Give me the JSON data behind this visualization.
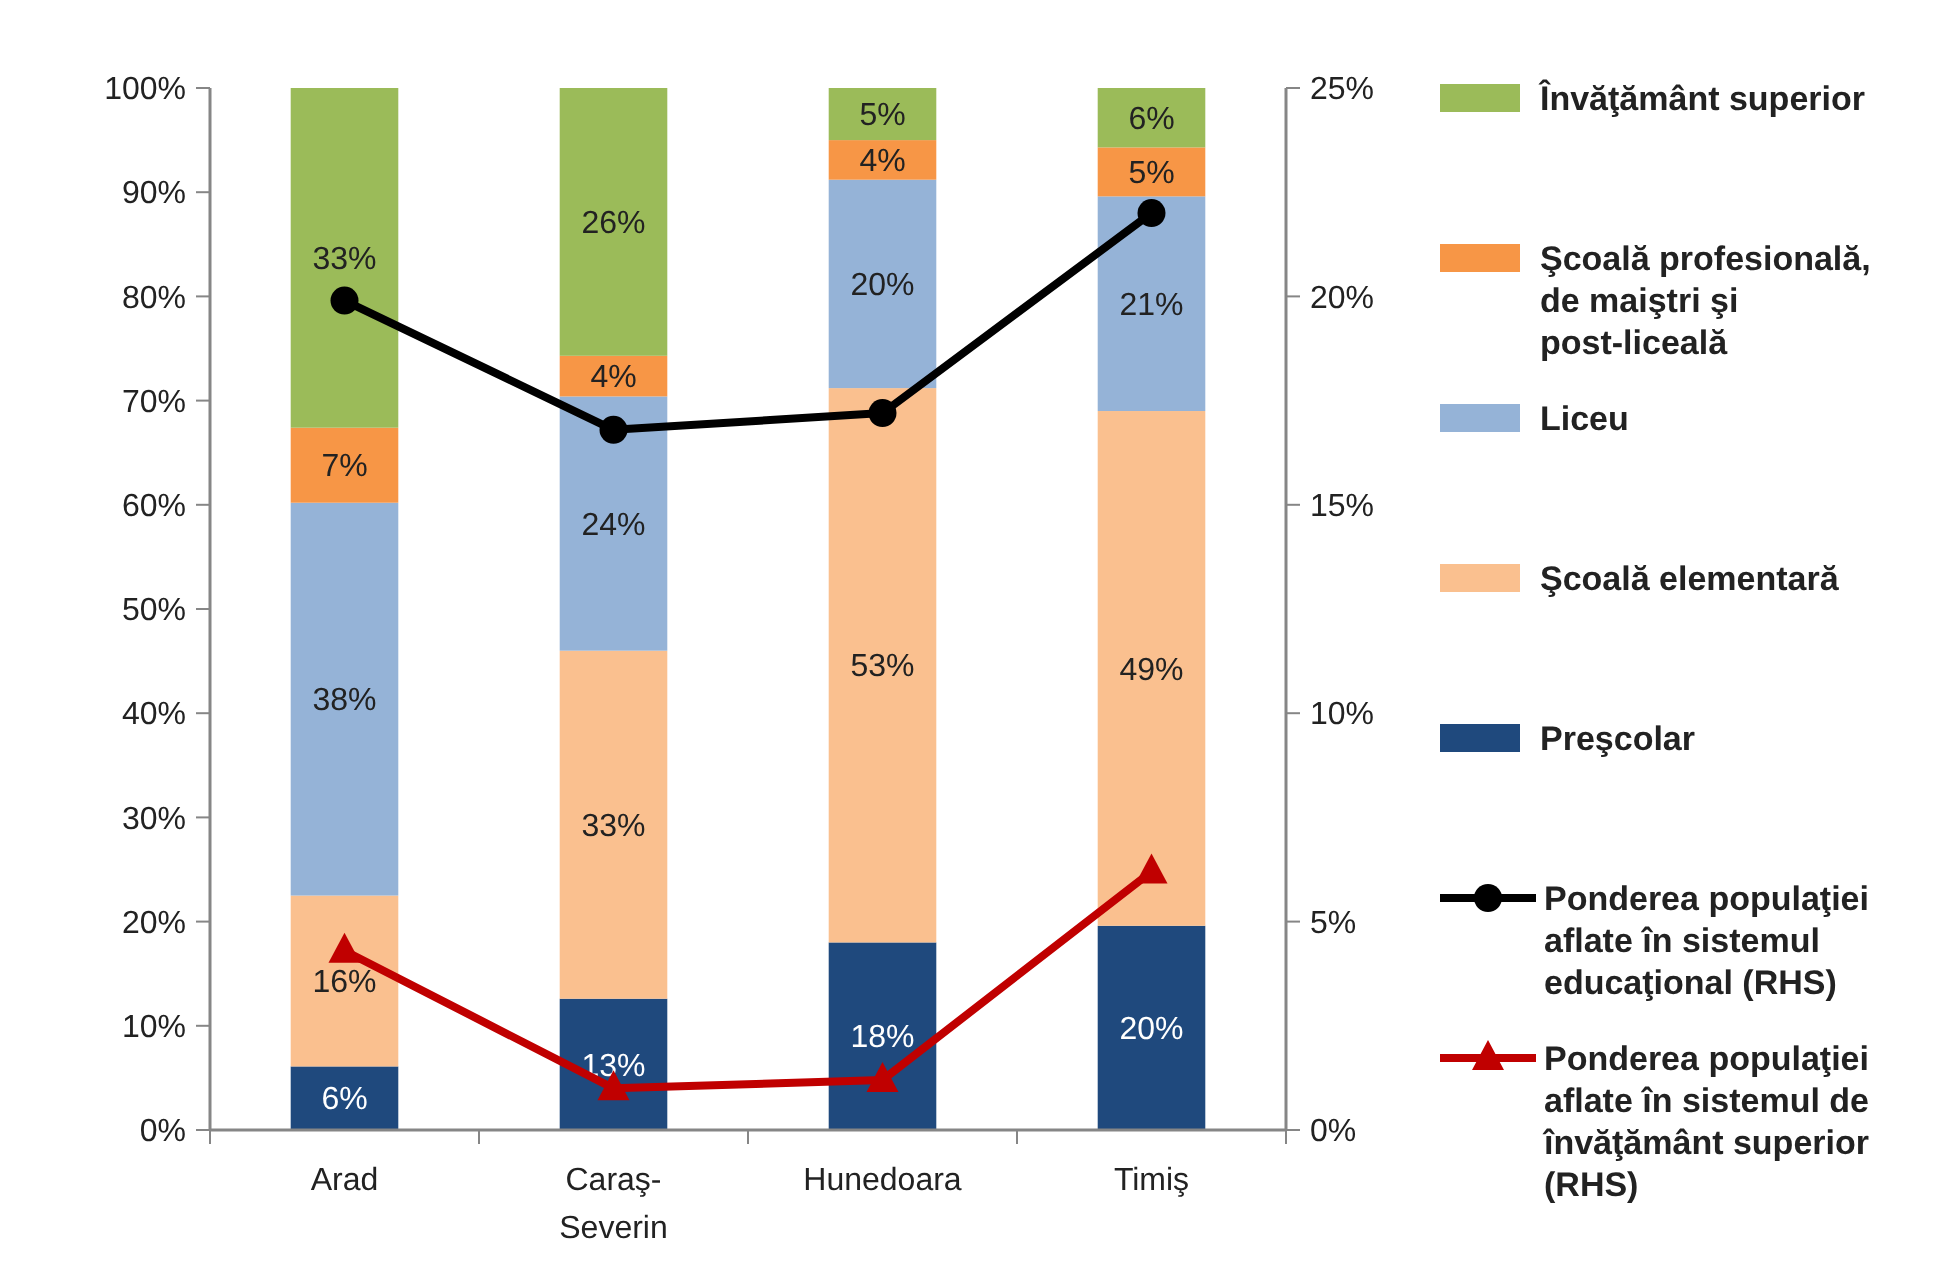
{
  "chart_data": {
    "type": "bar",
    "stacked": true,
    "categories": [
      "Arad",
      "Caraş-Severin",
      "Hunedoara",
      "Timiş"
    ],
    "ylim": [
      0,
      100
    ],
    "yticks": [
      {
        "value": 0,
        "label": "0%"
      },
      {
        "value": 10,
        "label": "10%"
      },
      {
        "value": 20,
        "label": "20%"
      },
      {
        "value": 30,
        "label": "30%"
      },
      {
        "value": 40,
        "label": "40%"
      },
      {
        "value": 50,
        "label": "50%"
      },
      {
        "value": 60,
        "label": "60%"
      },
      {
        "value": 70,
        "label": "70%"
      },
      {
        "value": 80,
        "label": "80%"
      },
      {
        "value": 90,
        "label": "90%"
      },
      {
        "value": 100,
        "label": "100%"
      }
    ],
    "y2lim": [
      0,
      25
    ],
    "y2ticks": [
      {
        "value": 0,
        "label": "0%"
      },
      {
        "value": 5,
        "label": "5%"
      },
      {
        "value": 10,
        "label": "10%"
      },
      {
        "value": 15,
        "label": "15%"
      },
      {
        "value": 20,
        "label": "20%"
      },
      {
        "value": 25,
        "label": "25%"
      }
    ],
    "legend": "right",
    "grid": false,
    "series": [
      {
        "name": "Preşcolar",
        "color": "#1f497d",
        "values": [
          6.1,
          12.6,
          18.0,
          19.6
        ],
        "value_labels": [
          "6%",
          "13%",
          "18%",
          "20%"
        ]
      },
      {
        "name": "Şcoală elementară",
        "color": "#fac08f",
        "values": [
          16.4,
          33.4,
          53.2,
          49.4
        ],
        "value_labels": [
          "16%",
          "33%",
          "53%",
          "49%"
        ]
      },
      {
        "name": "Liceu",
        "color": "#95b3d7",
        "values": [
          37.7,
          24.4,
          20.0,
          20.6
        ],
        "value_labels": [
          "38%",
          "24%",
          "20%",
          "21%"
        ]
      },
      {
        "name": "Şcoală profesională, de maiştri şi post-liceală",
        "color": "#f79646",
        "values": [
          7.2,
          3.9,
          3.8,
          4.7
        ],
        "value_labels": [
          "7%",
          "4%",
          "4%",
          "5%"
        ]
      },
      {
        "name": "Învăţământ superior",
        "color": "#9bbb59",
        "values": [
          32.6,
          25.7,
          5.0,
          5.7
        ],
        "value_labels": [
          "33%",
          "26%",
          "5%",
          "6%"
        ]
      },
      {
        "name": "Ponderea populaţiei aflate în sistemul educaţional (RHS)",
        "type": "line",
        "axis": "y2",
        "marker": "circle",
        "color": "#000000",
        "values": [
          19.9,
          16.8,
          17.2,
          22.0
        ]
      },
      {
        "name": "Ponderea populaţiei aflate în sistemul de învăţământ superior (RHS)",
        "type": "line",
        "axis": "y2",
        "marker": "triangle",
        "color": "#c00000",
        "values": [
          4.3,
          1.0,
          1.2,
          6.2
        ]
      }
    ]
  }
}
